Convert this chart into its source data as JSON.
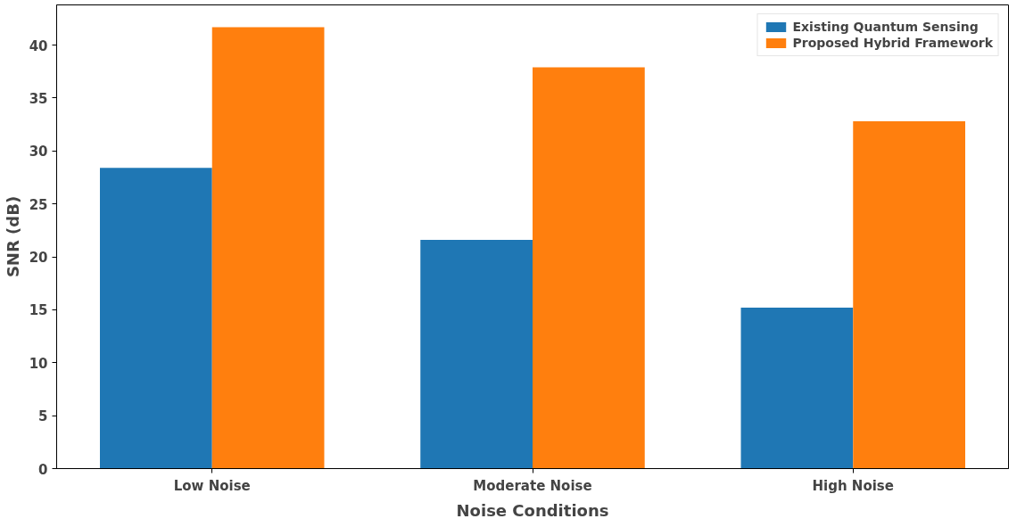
{
  "chart_data": {
    "type": "bar",
    "xlabel": "Noise Conditions",
    "ylabel": "SNR (dB)",
    "categories": [
      "Low Noise",
      "Moderate Noise",
      "High Noise"
    ],
    "series": [
      {
        "name": "Existing Quantum Sensing",
        "color": "#1f77b4",
        "values": [
          28.4,
          21.6,
          15.2
        ]
      },
      {
        "name": "Proposed Hybrid Framework",
        "color": "#ff7f0e",
        "values": [
          41.7,
          37.9,
          32.8
        ]
      }
    ],
    "ylim": [
      0,
      43.8
    ],
    "yticks": [
      0,
      5,
      10,
      15,
      20,
      25,
      30,
      35,
      40
    ],
    "grid": false,
    "legend": "top right"
  }
}
